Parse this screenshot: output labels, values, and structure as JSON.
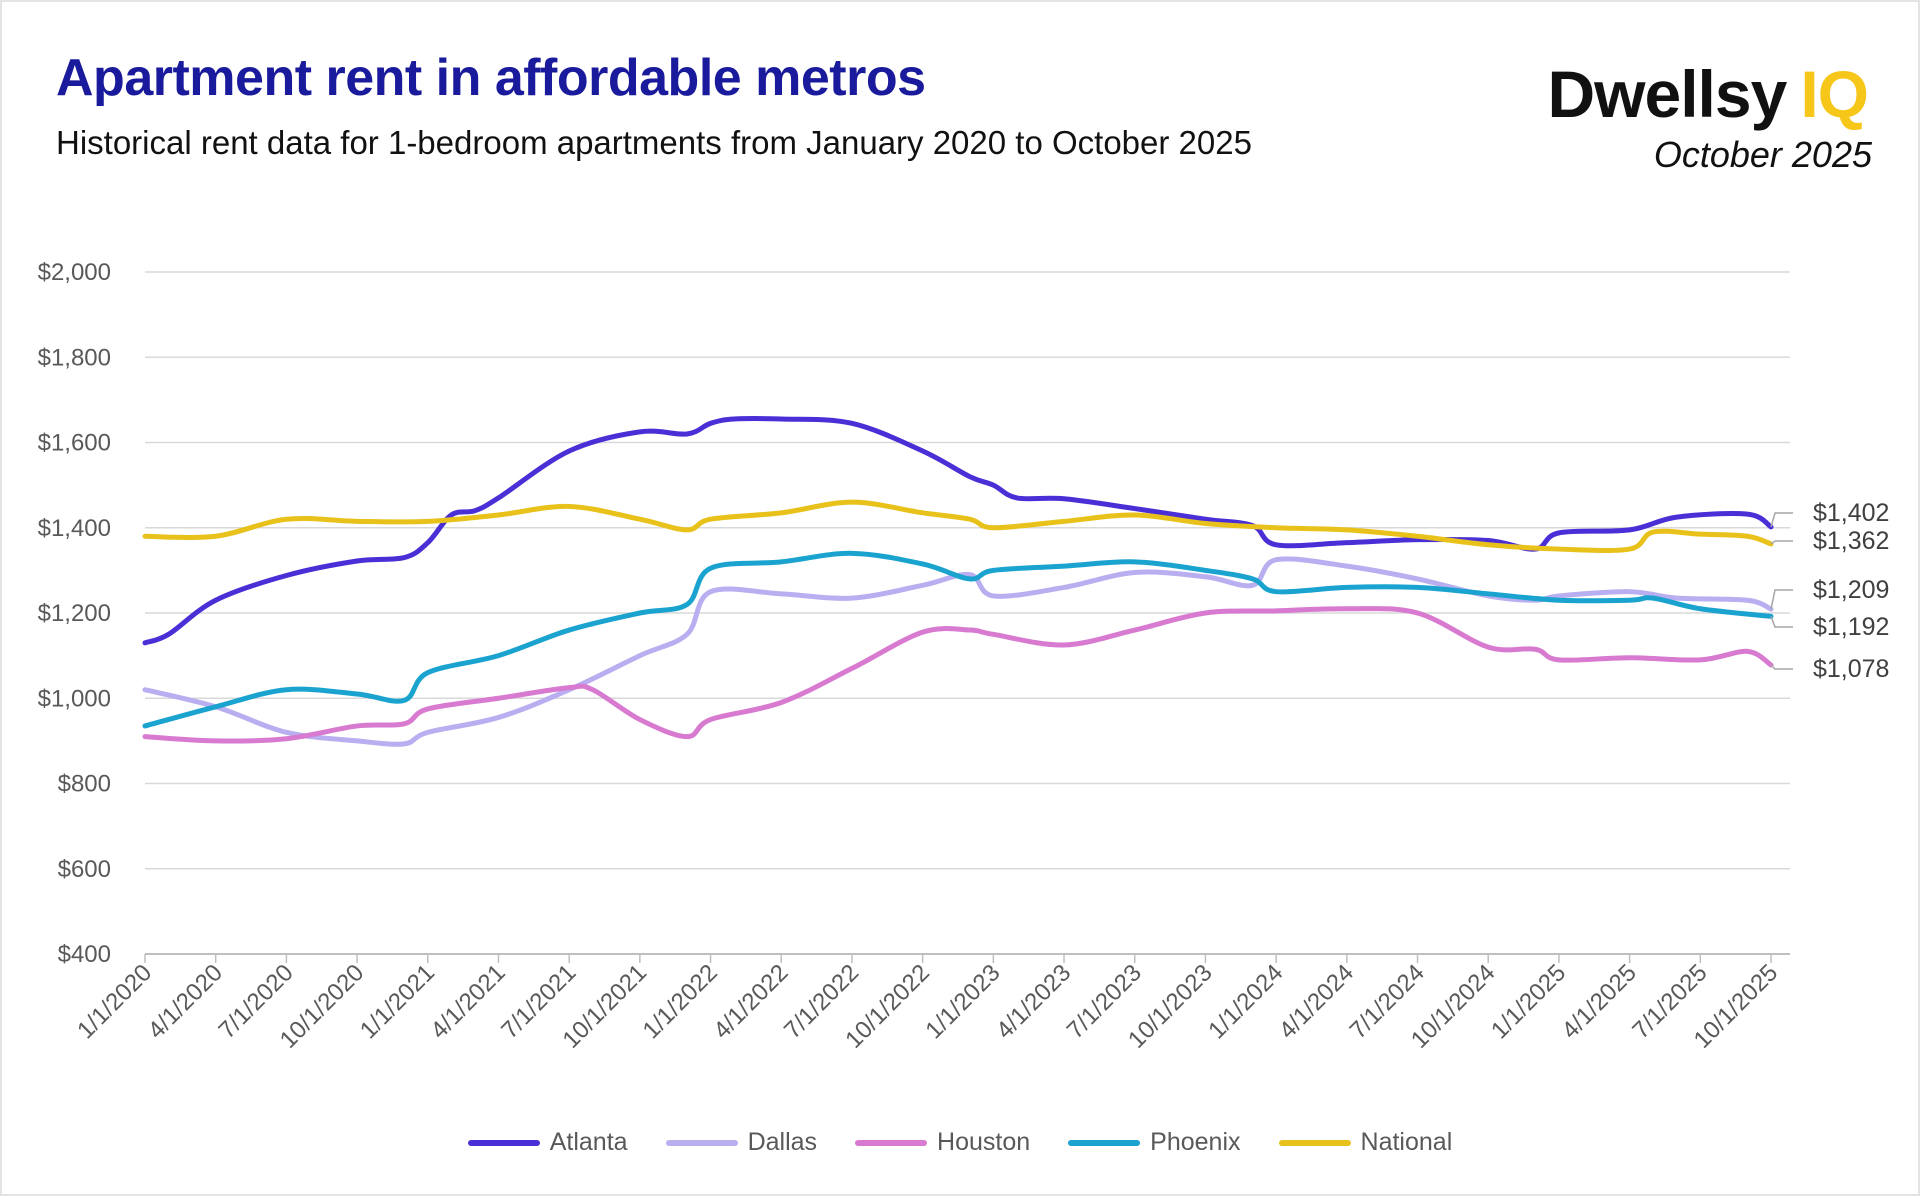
{
  "header": {
    "title": "Apartment rent in affordable metros",
    "subtitle": "Historical rent data for 1-bedroom apartments from January 2020 to October 2025",
    "logo_text": "Dwellsy IQ",
    "date": "October 2025"
  },
  "chart_data": {
    "type": "line",
    "title": "Apartment rent in affordable metros",
    "subtitle": "Historical rent data for 1-bedroom apartments from January 2020 to October 2025",
    "xlabel": "",
    "ylabel": "",
    "ylim": [
      400,
      2000
    ],
    "y_ticks": [
      "$400",
      "$600",
      "$800",
      "$1,000",
      "$1,200",
      "$1,400",
      "$1,600",
      "$1,800",
      "$2,000"
    ],
    "x_ticks": [
      "1/1/2020",
      "4/1/2020",
      "7/1/2020",
      "10/1/2020",
      "1/1/2021",
      "4/1/2021",
      "7/1/2021",
      "10/1/2021",
      "1/1/2022",
      "4/1/2022",
      "7/1/2022",
      "10/1/2022",
      "1/1/2023",
      "4/1/2023",
      "7/1/2023",
      "10/1/2023",
      "1/1/2024",
      "4/1/2024",
      "7/1/2024",
      "10/1/2024",
      "1/1/2025",
      "4/1/2025",
      "7/1/2025",
      "10/1/2025"
    ],
    "grid": true,
    "legend": "bottom",
    "series": [
      {
        "name": "Atlanta",
        "color": "#4b2fd6",
        "end_label": "$1,402",
        "points": [
          [
            "2020-01",
            1130
          ],
          [
            "2020-02",
            1150
          ],
          [
            "2020-04",
            1230
          ],
          [
            "2020-07",
            1288
          ],
          [
            "2020-10",
            1322
          ],
          [
            "2020-12",
            1330
          ],
          [
            "2021-01",
            1365
          ],
          [
            "2021-02",
            1430
          ],
          [
            "2021-03",
            1440
          ],
          [
            "2021-04",
            1470
          ],
          [
            "2021-07",
            1580
          ],
          [
            "2021-10",
            1625
          ],
          [
            "2021-12",
            1620
          ],
          [
            "2022-01",
            1645
          ],
          [
            "2022-02",
            1655
          ],
          [
            "2022-04",
            1655
          ],
          [
            "2022-07",
            1645
          ],
          [
            "2022-10",
            1580
          ],
          [
            "2022-12",
            1520
          ],
          [
            "2023-01",
            1500
          ],
          [
            "2023-02",
            1470
          ],
          [
            "2023-04",
            1468
          ],
          [
            "2023-07",
            1445
          ],
          [
            "2023-10",
            1420
          ],
          [
            "2023-12",
            1405
          ],
          [
            "2024-01",
            1360
          ],
          [
            "2024-04",
            1365
          ],
          [
            "2024-07",
            1372
          ],
          [
            "2024-10",
            1370
          ],
          [
            "2024-12",
            1350
          ],
          [
            "2025-01",
            1388
          ],
          [
            "2025-04",
            1395
          ],
          [
            "2025-06",
            1425
          ],
          [
            "2025-09",
            1432
          ],
          [
            "2025-10",
            1402
          ]
        ]
      },
      {
        "name": "Dallas",
        "color": "#b9aef0",
        "end_label": "$1,209",
        "points": [
          [
            "2020-01",
            1020
          ],
          [
            "2020-04",
            980
          ],
          [
            "2020-07",
            920
          ],
          [
            "2020-10",
            900
          ],
          [
            "2020-12",
            893
          ],
          [
            "2021-01",
            920
          ],
          [
            "2021-04",
            955
          ],
          [
            "2021-07",
            1020
          ],
          [
            "2021-10",
            1100
          ],
          [
            "2021-12",
            1150
          ],
          [
            "2022-01",
            1250
          ],
          [
            "2022-04",
            1245
          ],
          [
            "2022-07",
            1235
          ],
          [
            "2022-10",
            1265
          ],
          [
            "2022-12",
            1290
          ],
          [
            "2023-01",
            1240
          ],
          [
            "2023-04",
            1260
          ],
          [
            "2023-07",
            1295
          ],
          [
            "2023-10",
            1285
          ],
          [
            "2023-12",
            1265
          ],
          [
            "2024-01",
            1325
          ],
          [
            "2024-04",
            1310
          ],
          [
            "2024-07",
            1280
          ],
          [
            "2024-10",
            1240
          ],
          [
            "2024-12",
            1230
          ],
          [
            "2025-01",
            1240
          ],
          [
            "2025-04",
            1250
          ],
          [
            "2025-06",
            1235
          ],
          [
            "2025-09",
            1230
          ],
          [
            "2025-10",
            1209
          ]
        ]
      },
      {
        "name": "Houston",
        "color": "#d77ad0",
        "end_label": "$1,078",
        "points": [
          [
            "2020-01",
            910
          ],
          [
            "2020-04",
            900
          ],
          [
            "2020-07",
            905
          ],
          [
            "2020-10",
            935
          ],
          [
            "2020-12",
            940
          ],
          [
            "2021-01",
            975
          ],
          [
            "2021-04",
            1000
          ],
          [
            "2021-07",
            1025
          ],
          [
            "2021-08",
            1020
          ],
          [
            "2021-10",
            950
          ],
          [
            "2021-12",
            910
          ],
          [
            "2022-01",
            950
          ],
          [
            "2022-04",
            990
          ],
          [
            "2022-07",
            1070
          ],
          [
            "2022-10",
            1155
          ],
          [
            "2022-12",
            1160
          ],
          [
            "2023-01",
            1150
          ],
          [
            "2023-04",
            1125
          ],
          [
            "2023-07",
            1160
          ],
          [
            "2023-10",
            1200
          ],
          [
            "2024-01",
            1205
          ],
          [
            "2024-04",
            1210
          ],
          [
            "2024-07",
            1200
          ],
          [
            "2024-10",
            1120
          ],
          [
            "2024-12",
            1115
          ],
          [
            "2025-01",
            1090
          ],
          [
            "2025-04",
            1095
          ],
          [
            "2025-07",
            1090
          ],
          [
            "2025-09",
            1110
          ],
          [
            "2025-10",
            1078
          ]
        ]
      },
      {
        "name": "Phoenix",
        "color": "#1aa3cf",
        "end_label": "$1,192",
        "points": [
          [
            "2020-01",
            935
          ],
          [
            "2020-04",
            980
          ],
          [
            "2020-07",
            1020
          ],
          [
            "2020-10",
            1010
          ],
          [
            "2020-12",
            995
          ],
          [
            "2021-01",
            1060
          ],
          [
            "2021-04",
            1100
          ],
          [
            "2021-07",
            1160
          ],
          [
            "2021-10",
            1200
          ],
          [
            "2021-12",
            1220
          ],
          [
            "2022-01",
            1305
          ],
          [
            "2022-04",
            1320
          ],
          [
            "2022-07",
            1340
          ],
          [
            "2022-10",
            1315
          ],
          [
            "2022-12",
            1280
          ],
          [
            "2023-01",
            1300
          ],
          [
            "2023-04",
            1310
          ],
          [
            "2023-07",
            1320
          ],
          [
            "2023-10",
            1300
          ],
          [
            "2023-12",
            1280
          ],
          [
            "2024-01",
            1250
          ],
          [
            "2024-04",
            1260
          ],
          [
            "2024-07",
            1260
          ],
          [
            "2024-10",
            1245
          ],
          [
            "2025-01",
            1230
          ],
          [
            "2025-04",
            1230
          ],
          [
            "2025-05",
            1235
          ],
          [
            "2025-07",
            1210
          ],
          [
            "2025-10",
            1192
          ]
        ]
      },
      {
        "name": "National",
        "color": "#e8c21a",
        "end_label": "$1,362",
        "points": [
          [
            "2020-01",
            1380
          ],
          [
            "2020-04",
            1380
          ],
          [
            "2020-07",
            1420
          ],
          [
            "2020-10",
            1415
          ],
          [
            "2021-01",
            1415
          ],
          [
            "2021-04",
            1430
          ],
          [
            "2021-07",
            1450
          ],
          [
            "2021-10",
            1420
          ],
          [
            "2021-12",
            1395
          ],
          [
            "2022-01",
            1420
          ],
          [
            "2022-04",
            1435
          ],
          [
            "2022-07",
            1460
          ],
          [
            "2022-10",
            1435
          ],
          [
            "2022-12",
            1420
          ],
          [
            "2023-01",
            1400
          ],
          [
            "2023-04",
            1415
          ],
          [
            "2023-07",
            1430
          ],
          [
            "2023-10",
            1410
          ],
          [
            "2024-01",
            1400
          ],
          [
            "2024-04",
            1395
          ],
          [
            "2024-07",
            1380
          ],
          [
            "2024-10",
            1360
          ],
          [
            "2025-01",
            1350
          ],
          [
            "2025-04",
            1350
          ],
          [
            "2025-05",
            1390
          ],
          [
            "2025-07",
            1385
          ],
          [
            "2025-09",
            1380
          ],
          [
            "2025-10",
            1362
          ]
        ]
      }
    ]
  }
}
